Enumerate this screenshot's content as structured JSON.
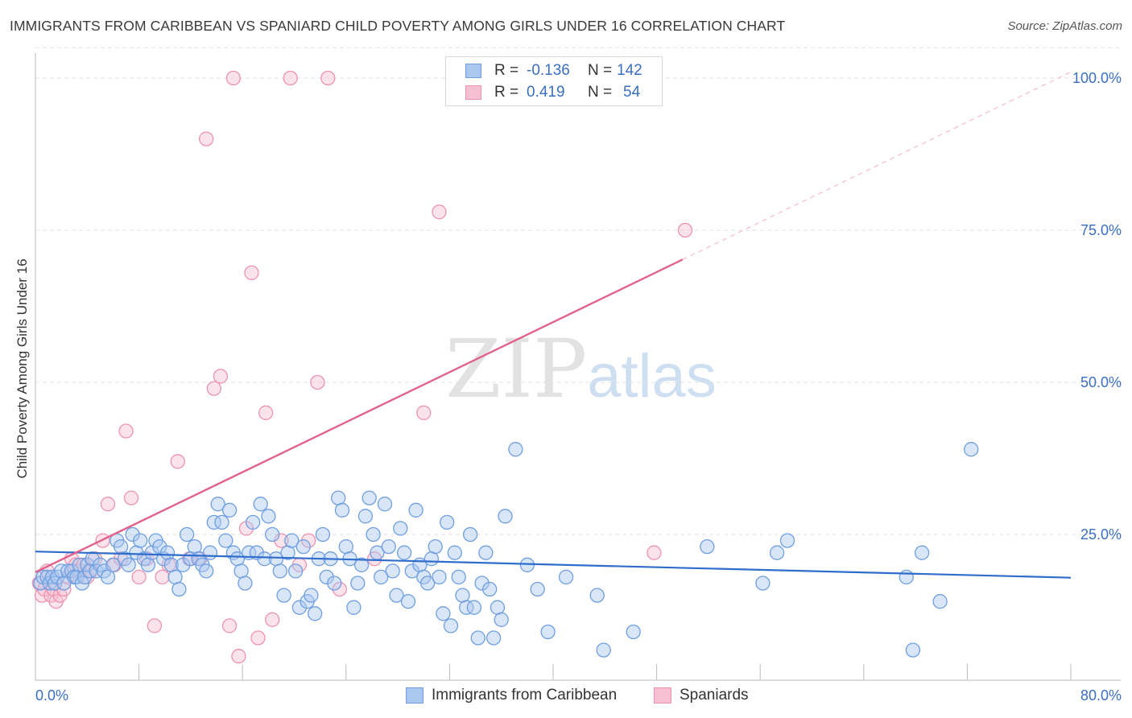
{
  "title": "IMMIGRANTS FROM CARIBBEAN VS SPANIARD CHILD POVERTY AMONG GIRLS UNDER 16 CORRELATION CHART",
  "source": "Source: ZipAtlas.com",
  "watermark": {
    "left": "ZIP",
    "right": "atlas"
  },
  "legend": {
    "r_label": "R =",
    "n_label": "N =",
    "series1": {
      "r": "-0.136",
      "n": "142"
    },
    "series2": {
      "r": "0.419",
      "n": "54"
    }
  },
  "colors": {
    "blue_fill": "#aac8ef",
    "blue_stroke": "#6f9fe0",
    "blue_line": "#2f6dcc",
    "pink_fill": "#f7c0d2",
    "pink_stroke": "#ec93b1",
    "pink_line": "#e0628d",
    "tick_label": "#3a6fc4",
    "grid": "#e2e2e2"
  },
  "chart_data": {
    "type": "scatter",
    "title": "IMMIGRANTS FROM CARIBBEAN VS SPANIARD CHILD POVERTY AMONG GIRLS UNDER 16 CORRELATION CHART",
    "xlabel": "",
    "ylabel": "Child Poverty Among Girls Under 16",
    "xlim": [
      0,
      80
    ],
    "ylim": [
      0,
      105
    ],
    "x_tick_labels": [
      "0.0%",
      "80.0%"
    ],
    "y_ticks": [
      25,
      50,
      75,
      100
    ],
    "y_tick_labels": [
      "25.0%",
      "50.0%",
      "75.0%",
      "100.0%"
    ],
    "grid": "horizontal dashed",
    "legend_position": "top-center",
    "series": [
      {
        "name": "Immigrants from Caribbean",
        "color": "#aac8ef",
        "r": -0.136,
        "n": 142,
        "trend": {
          "x": [
            0,
            80
          ],
          "y": [
            22.2,
            17.9
          ]
        },
        "points": [
          [
            0.4,
            17
          ],
          [
            0.6,
            18
          ],
          [
            0.9,
            18
          ],
          [
            1.1,
            17
          ],
          [
            1.3,
            18
          ],
          [
            1.5,
            17
          ],
          [
            1.7,
            18
          ],
          [
            2.0,
            19
          ],
          [
            2.2,
            17
          ],
          [
            2.5,
            19
          ],
          [
            2.8,
            19
          ],
          [
            3.0,
            18
          ],
          [
            3.2,
            18
          ],
          [
            3.4,
            20
          ],
          [
            3.6,
            17
          ],
          [
            3.8,
            18
          ],
          [
            4.0,
            20
          ],
          [
            4.2,
            19
          ],
          [
            4.4,
            21
          ],
          [
            4.7,
            19
          ],
          [
            5.0,
            20
          ],
          [
            5.3,
            19
          ],
          [
            5.6,
            18
          ],
          [
            6.0,
            20
          ],
          [
            6.3,
            24
          ],
          [
            6.6,
            23
          ],
          [
            6.9,
            21
          ],
          [
            7.2,
            20
          ],
          [
            7.5,
            25
          ],
          [
            7.8,
            22
          ],
          [
            8.1,
            24
          ],
          [
            8.4,
            21
          ],
          [
            8.7,
            20
          ],
          [
            9.0,
            22
          ],
          [
            9.3,
            24
          ],
          [
            9.6,
            23
          ],
          [
            9.9,
            21
          ],
          [
            10.2,
            22
          ],
          [
            10.5,
            20
          ],
          [
            10.8,
            18
          ],
          [
            11.1,
            16
          ],
          [
            11.4,
            20
          ],
          [
            11.7,
            25
          ],
          [
            12.0,
            21
          ],
          [
            12.3,
            23
          ],
          [
            12.6,
            21
          ],
          [
            12.9,
            20
          ],
          [
            13.2,
            19
          ],
          [
            13.5,
            22
          ],
          [
            13.8,
            27
          ],
          [
            14.1,
            30
          ],
          [
            14.4,
            27
          ],
          [
            14.7,
            24
          ],
          [
            15.0,
            29
          ],
          [
            15.3,
            22
          ],
          [
            15.6,
            21
          ],
          [
            15.9,
            19
          ],
          [
            16.2,
            17
          ],
          [
            16.5,
            22
          ],
          [
            16.8,
            27
          ],
          [
            17.1,
            22
          ],
          [
            17.4,
            30
          ],
          [
            17.7,
            21
          ],
          [
            18.0,
            28
          ],
          [
            18.3,
            25
          ],
          [
            18.6,
            21
          ],
          [
            18.9,
            19
          ],
          [
            19.2,
            15
          ],
          [
            19.5,
            22
          ],
          [
            19.8,
            24
          ],
          [
            20.1,
            19
          ],
          [
            20.4,
            13
          ],
          [
            20.7,
            23
          ],
          [
            21.0,
            14
          ],
          [
            21.3,
            15
          ],
          [
            21.6,
            12
          ],
          [
            21.9,
            21
          ],
          [
            22.2,
            25
          ],
          [
            22.5,
            18
          ],
          [
            22.8,
            21
          ],
          [
            23.1,
            17
          ],
          [
            23.4,
            31
          ],
          [
            23.7,
            29
          ],
          [
            24.0,
            23
          ],
          [
            24.3,
            21
          ],
          [
            24.6,
            13
          ],
          [
            24.9,
            17
          ],
          [
            25.2,
            20
          ],
          [
            25.5,
            28
          ],
          [
            25.8,
            31
          ],
          [
            26.1,
            25
          ],
          [
            26.4,
            22
          ],
          [
            26.7,
            18
          ],
          [
            27.0,
            30
          ],
          [
            27.3,
            23
          ],
          [
            27.6,
            19
          ],
          [
            27.9,
            15
          ],
          [
            28.2,
            26
          ],
          [
            28.5,
            22
          ],
          [
            28.8,
            14
          ],
          [
            29.1,
            19
          ],
          [
            29.4,
            29
          ],
          [
            29.7,
            20
          ],
          [
            30.0,
            18
          ],
          [
            30.3,
            17
          ],
          [
            30.6,
            21
          ],
          [
            30.9,
            23
          ],
          [
            31.2,
            18
          ],
          [
            31.5,
            12
          ],
          [
            31.8,
            27
          ],
          [
            32.1,
            10
          ],
          [
            32.4,
            22
          ],
          [
            32.7,
            18
          ],
          [
            33.0,
            15
          ],
          [
            33.3,
            13
          ],
          [
            33.6,
            25
          ],
          [
            33.9,
            13
          ],
          [
            34.2,
            8
          ],
          [
            34.5,
            17
          ],
          [
            34.8,
            22
          ],
          [
            35.1,
            16
          ],
          [
            35.4,
            8
          ],
          [
            35.7,
            13
          ],
          [
            36.0,
            11
          ],
          [
            36.3,
            28
          ],
          [
            37.1,
            39
          ],
          [
            38.0,
            20
          ],
          [
            38.8,
            16
          ],
          [
            39.6,
            9
          ],
          [
            41.0,
            18
          ],
          [
            43.4,
            15
          ],
          [
            43.9,
            6
          ],
          [
            46.2,
            9
          ],
          [
            51.9,
            23
          ],
          [
            56.2,
            17
          ],
          [
            57.3,
            22
          ],
          [
            58.1,
            24
          ],
          [
            68.5,
            22
          ],
          [
            72.3,
            39
          ],
          [
            67.8,
            6
          ],
          [
            67.3,
            18
          ],
          [
            69.9,
            14
          ]
        ]
      },
      {
        "name": "Spaniards",
        "color": "#f7c0d2",
        "r": 0.419,
        "n": 54,
        "trend": {
          "x": [
            0,
            80
          ],
          "y": [
            18.8,
            101
          ]
        },
        "trend_solid_to_x": 50,
        "points": [
          [
            0.3,
            17
          ],
          [
            0.5,
            15
          ],
          [
            0.7,
            16
          ],
          [
            0.9,
            19
          ],
          [
            1.2,
            15
          ],
          [
            1.4,
            16
          ],
          [
            1.6,
            14
          ],
          [
            1.9,
            15
          ],
          [
            2.2,
            16
          ],
          [
            2.5,
            18
          ],
          [
            2.8,
            21
          ],
          [
            3.1,
            20
          ],
          [
            3.4,
            19
          ],
          [
            3.7,
            20
          ],
          [
            4.0,
            18
          ],
          [
            4.3,
            19
          ],
          [
            4.6,
            21
          ],
          [
            5.2,
            24
          ],
          [
            5.6,
            30
          ],
          [
            6.1,
            20
          ],
          [
            6.6,
            21
          ],
          [
            7.0,
            42
          ],
          [
            7.4,
            31
          ],
          [
            8.0,
            18
          ],
          [
            8.6,
            21
          ],
          [
            9.2,
            10
          ],
          [
            9.8,
            18
          ],
          [
            10.3,
            20
          ],
          [
            11.0,
            37
          ],
          [
            11.9,
            21
          ],
          [
            12.7,
            21
          ],
          [
            13.2,
            90
          ],
          [
            13.8,
            49
          ],
          [
            14.3,
            51
          ],
          [
            15.0,
            10
          ],
          [
            15.3,
            100
          ],
          [
            15.7,
            5
          ],
          [
            16.3,
            26
          ],
          [
            16.7,
            68
          ],
          [
            17.2,
            8
          ],
          [
            17.8,
            45
          ],
          [
            18.3,
            11
          ],
          [
            19.0,
            24
          ],
          [
            19.7,
            100
          ],
          [
            20.4,
            20
          ],
          [
            21.1,
            24
          ],
          [
            21.8,
            50
          ],
          [
            22.6,
            100
          ],
          [
            23.5,
            16
          ],
          [
            26.2,
            21
          ],
          [
            30.0,
            45
          ],
          [
            31.2,
            78
          ],
          [
            50.2,
            75
          ],
          [
            47.8,
            22
          ]
        ]
      }
    ]
  }
}
